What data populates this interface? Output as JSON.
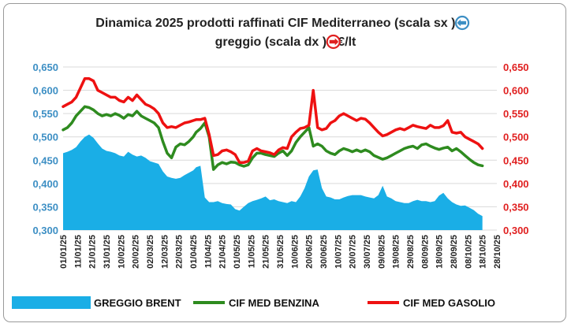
{
  "chart_data": {
    "type": "line",
    "title": {
      "line1_a": "Dinamica 2025 prodotti raffinati CIF Mediterraneo (scala sx ",
      "line1_b": ") e",
      "line2_a": "greggio (scala dx ",
      "line2_b": ") - €/lt"
    },
    "icons": {
      "left_scale": "circle-arrow-left-icon",
      "right_scale": "circle-arrow-right-icon"
    },
    "colors": {
      "brent": "#1aaee6",
      "benzina": "#2e8b1f",
      "gasolio": "#ee1111",
      "left_axis": "#3d8fc4",
      "right_axis": "#e02020"
    },
    "y_left": {
      "min": 0.3,
      "max": 0.65,
      "ticks": [
        "0,300",
        "0,350",
        "0,400",
        "0,450",
        "0,500",
        "0,550",
        "0,600",
        "0,650"
      ]
    },
    "y_right": {
      "min": 0.3,
      "max": 0.65,
      "ticks": [
        "0,300",
        "0,350",
        "0,400",
        "0,450",
        "0,500",
        "0,550",
        "0,600",
        "0,650"
      ]
    },
    "x_ticks": [
      "01/01/25",
      "11/01/25",
      "21/01/25",
      "31/01/25",
      "10/02/25",
      "20/02/25",
      "02/03/25",
      "12/03/25",
      "22/03/25",
      "01/04/25",
      "11/04/25",
      "21/04/25",
      "01/05/25",
      "11/05/25",
      "21/05/25",
      "31/05/25",
      "10/06/25",
      "20/06/25",
      "30/06/25",
      "10/07/25",
      "20/07/25",
      "30/07/25",
      "09/08/25",
      "19/08/25",
      "29/08/25",
      "08/09/25",
      "18/09/25",
      "28/09/25",
      "08/10/25",
      "18/10/25",
      "28/10/25"
    ],
    "grid": true,
    "legend_position": "bottom",
    "series": [
      {
        "name": "GREGGIO BRENT",
        "type": "area",
        "axis": "right",
        "x": [
          0,
          3,
          6,
          9,
          12,
          15,
          18,
          21,
          24,
          27,
          30,
          33,
          36,
          39,
          42,
          45,
          48,
          51,
          54,
          57,
          60,
          63,
          66,
          69,
          72,
          75,
          78,
          81,
          84,
          87,
          90,
          92,
          95,
          98,
          101,
          104,
          107,
          110,
          113,
          116,
          119,
          122,
          125,
          128,
          131,
          134,
          137,
          140,
          143,
          146,
          149,
          152,
          155,
          158,
          161,
          164,
          167,
          170,
          173,
          176,
          179,
          182,
          185,
          188,
          191,
          194,
          197,
          200,
          203,
          206,
          209,
          212,
          215,
          218,
          221,
          224,
          227,
          230,
          233,
          236,
          239,
          242,
          245,
          248,
          251,
          254,
          257,
          260,
          263,
          266,
          269,
          272,
          275,
          278,
          281,
          284,
          287,
          290
        ],
        "values": [
          0.465,
          0.468,
          0.472,
          0.478,
          0.49,
          0.5,
          0.505,
          0.498,
          0.486,
          0.475,
          0.47,
          0.468,
          0.465,
          0.46,
          0.458,
          0.468,
          0.462,
          0.458,
          0.46,
          0.455,
          0.448,
          0.445,
          0.442,
          0.426,
          0.415,
          0.412,
          0.41,
          0.412,
          0.418,
          0.423,
          0.428,
          0.435,
          0.438,
          0.37,
          0.36,
          0.36,
          0.362,
          0.358,
          0.356,
          0.355,
          0.345,
          0.342,
          0.35,
          0.358,
          0.362,
          0.365,
          0.368,
          0.372,
          0.364,
          0.366,
          0.362,
          0.36,
          0.358,
          0.362,
          0.36,
          0.372,
          0.39,
          0.415,
          0.428,
          0.43,
          0.39,
          0.372,
          0.37,
          0.366,
          0.366,
          0.37,
          0.373,
          0.375,
          0.375,
          0.375,
          0.372,
          0.37,
          0.368,
          0.375,
          0.395,
          0.372,
          0.368,
          0.362,
          0.36,
          0.358,
          0.358,
          0.362,
          0.365,
          0.362,
          0.362,
          0.36,
          0.362,
          0.374,
          0.38,
          0.368,
          0.36,
          0.355,
          0.352,
          0.353,
          0.348,
          0.343,
          0.335,
          0.33
        ]
      },
      {
        "name": "CIF MED BENZINA",
        "type": "line",
        "axis": "left",
        "x": [
          0,
          3,
          6,
          9,
          12,
          15,
          18,
          21,
          24,
          27,
          30,
          33,
          36,
          39,
          42,
          45,
          48,
          51,
          54,
          57,
          60,
          63,
          66,
          69,
          72,
          75,
          78,
          81,
          84,
          87,
          90,
          92,
          95,
          98,
          101,
          104,
          107,
          110,
          113,
          116,
          119,
          122,
          125,
          128,
          131,
          134,
          137,
          140,
          143,
          146,
          149,
          152,
          155,
          158,
          161,
          164,
          167,
          170,
          173,
          176,
          179,
          182,
          185,
          188,
          191,
          194,
          197,
          200,
          203,
          206,
          209,
          212,
          215,
          218,
          221,
          224,
          227,
          230,
          233,
          236,
          239,
          242,
          245,
          248,
          251,
          254,
          257,
          260,
          263,
          266,
          269,
          272,
          275,
          278,
          281,
          284,
          287,
          290
        ],
        "values": [
          0.515,
          0.52,
          0.53,
          0.545,
          0.555,
          0.565,
          0.563,
          0.558,
          0.55,
          0.545,
          0.548,
          0.545,
          0.55,
          0.546,
          0.54,
          0.548,
          0.545,
          0.555,
          0.545,
          0.54,
          0.535,
          0.53,
          0.52,
          0.49,
          0.465,
          0.455,
          0.478,
          0.485,
          0.483,
          0.49,
          0.5,
          0.51,
          0.518,
          0.53,
          0.5,
          0.43,
          0.44,
          0.445,
          0.442,
          0.446,
          0.445,
          0.44,
          0.437,
          0.44,
          0.455,
          0.465,
          0.465,
          0.462,
          0.46,
          0.458,
          0.465,
          0.47,
          0.46,
          0.47,
          0.488,
          0.5,
          0.51,
          0.52,
          0.48,
          0.485,
          0.48,
          0.47,
          0.465,
          0.462,
          0.47,
          0.475,
          0.472,
          0.468,
          0.472,
          0.468,
          0.472,
          0.468,
          0.46,
          0.456,
          0.452,
          0.455,
          0.46,
          0.465,
          0.47,
          0.475,
          0.478,
          0.48,
          0.475,
          0.483,
          0.485,
          0.48,
          0.476,
          0.473,
          0.476,
          0.478,
          0.47,
          0.475,
          0.468,
          0.46,
          0.452,
          0.445,
          0.44,
          0.438
        ]
      },
      {
        "name": "CIF MED GASOLIO",
        "type": "line",
        "axis": "right",
        "x": [
          0,
          3,
          6,
          9,
          12,
          15,
          18,
          21,
          24,
          27,
          30,
          33,
          36,
          39,
          42,
          45,
          48,
          51,
          54,
          57,
          60,
          63,
          66,
          69,
          72,
          75,
          78,
          81,
          84,
          87,
          90,
          92,
          95,
          98,
          101,
          104,
          107,
          110,
          113,
          116,
          119,
          122,
          125,
          128,
          131,
          134,
          137,
          140,
          143,
          146,
          149,
          152,
          155,
          158,
          161,
          164,
          167,
          170,
          173,
          176,
          179,
          182,
          185,
          188,
          191,
          194,
          197,
          200,
          203,
          206,
          209,
          212,
          215,
          218,
          221,
          224,
          227,
          230,
          233,
          236,
          239,
          242,
          245,
          248,
          251,
          254,
          257,
          260,
          263,
          266,
          269,
          272,
          275,
          278,
          281,
          284,
          287,
          290
        ],
        "values": [
          0.565,
          0.57,
          0.575,
          0.585,
          0.605,
          0.625,
          0.625,
          0.62,
          0.6,
          0.595,
          0.59,
          0.585,
          0.585,
          0.578,
          0.575,
          0.585,
          0.578,
          0.59,
          0.58,
          0.57,
          0.566,
          0.56,
          0.55,
          0.53,
          0.52,
          0.522,
          0.52,
          0.525,
          0.53,
          0.532,
          0.535,
          0.537,
          0.537,
          0.54,
          0.505,
          0.46,
          0.462,
          0.47,
          0.472,
          0.468,
          0.462,
          0.445,
          0.445,
          0.448,
          0.47,
          0.475,
          0.47,
          0.468,
          0.466,
          0.462,
          0.472,
          0.477,
          0.475,
          0.5,
          0.51,
          0.518,
          0.52,
          0.525,
          0.6,
          0.52,
          0.515,
          0.518,
          0.53,
          0.535,
          0.545,
          0.55,
          0.545,
          0.54,
          0.535,
          0.54,
          0.538,
          0.53,
          0.52,
          0.51,
          0.502,
          0.505,
          0.51,
          0.515,
          0.518,
          0.515,
          0.52,
          0.525,
          0.522,
          0.52,
          0.518,
          0.525,
          0.52,
          0.52,
          0.524,
          0.535,
          0.51,
          0.508,
          0.51,
          0.5,
          0.495,
          0.49,
          0.485,
          0.475
        ]
      }
    ]
  }
}
